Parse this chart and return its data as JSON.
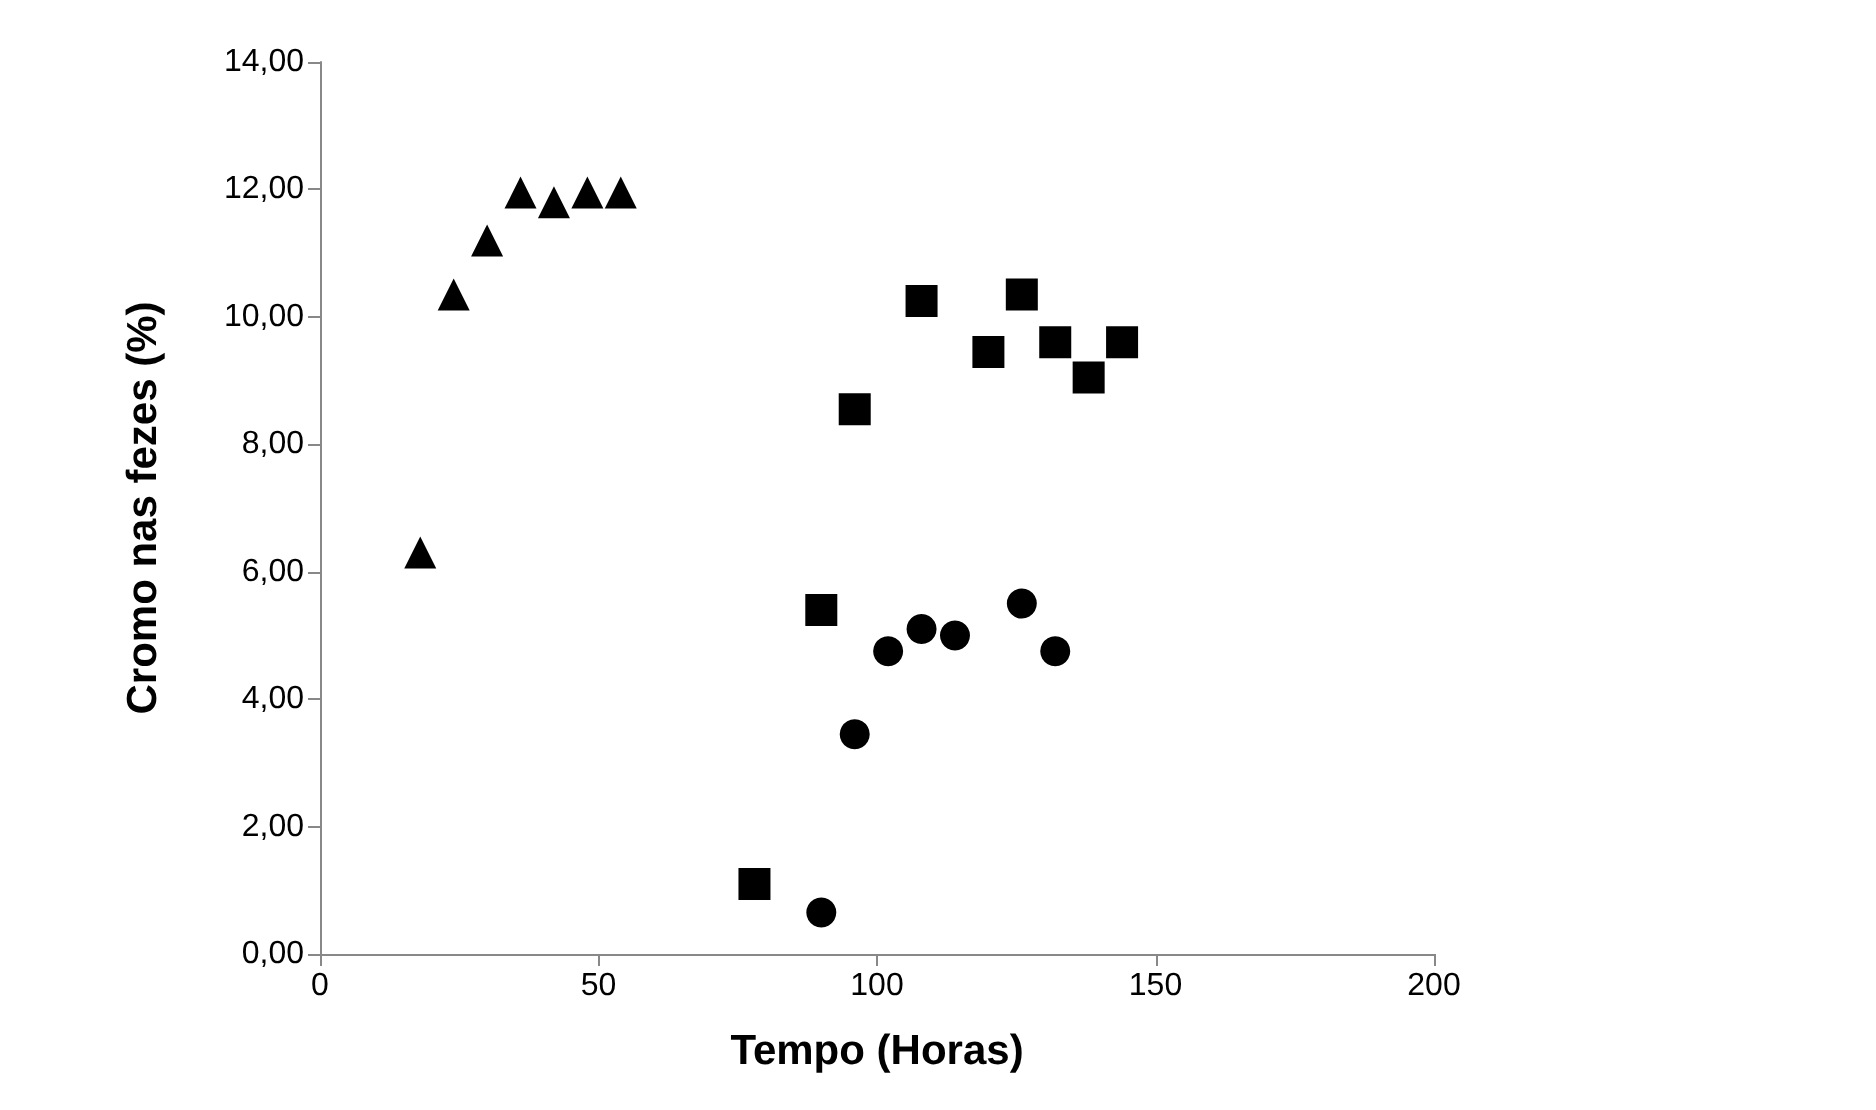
{
  "chart_data": {
    "type": "scatter",
    "xlabel": "Tempo (Horas)",
    "ylabel": "Cromo nas fezes (%)",
    "xlim": [
      0,
      200
    ],
    "xticks": [
      0,
      50,
      100,
      150,
      200
    ],
    "ylim": [
      0,
      14
    ],
    "yticks": [
      {
        "value": 0,
        "label": "0,00"
      },
      {
        "value": 2,
        "label": "2,00"
      },
      {
        "value": 4,
        "label": "4,00"
      },
      {
        "value": 6,
        "label": "6,00"
      },
      {
        "value": 8,
        "label": "8,00"
      },
      {
        "value": 10,
        "label": "10,00"
      },
      {
        "value": 12,
        "label": "12,00"
      },
      {
        "value": 14,
        "label": "14,00"
      }
    ],
    "series": [
      {
        "color": "#000000",
        "marker": "triangle",
        "x": [
          18,
          24,
          30,
          36,
          42,
          48,
          54
        ],
        "values": [
          6.3,
          10.35,
          11.2,
          11.95,
          11.8,
          11.95,
          11.95
        ]
      },
      {
        "color": "#000000",
        "marker": "square",
        "x": [
          78,
          90,
          96,
          108,
          120,
          126,
          132,
          138,
          144
        ],
        "values": [
          1.1,
          5.4,
          8.55,
          10.25,
          9.45,
          10.35,
          9.6,
          9.05,
          9.6
        ]
      },
      {
        "color": "#000000",
        "marker": "circle",
        "x": [
          90,
          96,
          102,
          108,
          114,
          126,
          132
        ],
        "values": [
          0.65,
          3.45,
          4.75,
          5.1,
          5.0,
          5.5,
          4.75
        ]
      }
    ]
  }
}
